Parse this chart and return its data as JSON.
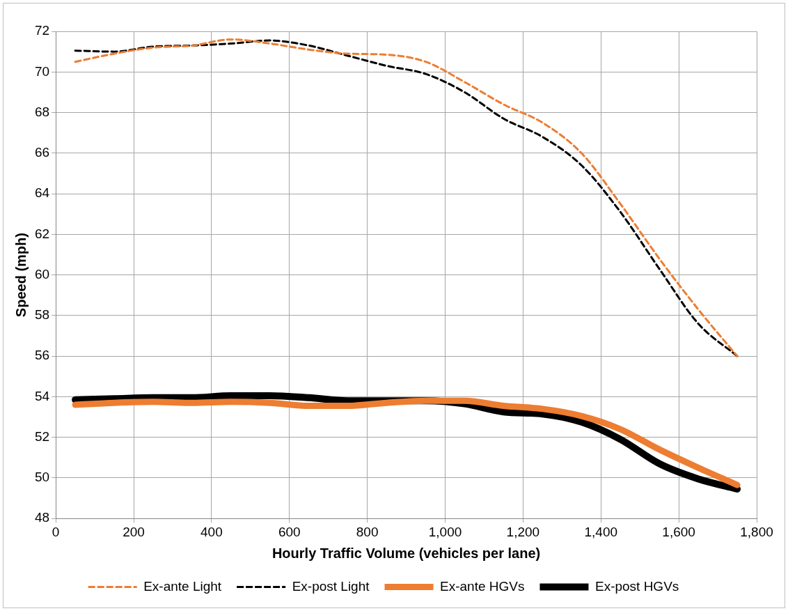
{
  "chart_data": {
    "type": "line",
    "xlabel": "Hourly Traffic Volume (vehicles per lane)",
    "ylabel": "Speed (mph)",
    "x": [
      50,
      150,
      250,
      350,
      450,
      550,
      650,
      750,
      850,
      950,
      1050,
      1150,
      1250,
      1350,
      1450,
      1550,
      1650,
      1750
    ],
    "series": [
      {
        "name": "Ex-ante Light",
        "color": "#ed7d31",
        "line_style": "dashed",
        "values": [
          70.5,
          70.9,
          71.2,
          71.3,
          71.6,
          71.4,
          71.1,
          70.9,
          70.85,
          70.5,
          69.5,
          68.4,
          67.5,
          66.0,
          63.5,
          60.8,
          58.3,
          56.0
        ]
      },
      {
        "name": "Ex-post Light",
        "color": "#000000",
        "line_style": "dashed",
        "values": [
          71.05,
          71.0,
          71.25,
          71.3,
          71.4,
          71.55,
          71.3,
          70.8,
          70.3,
          69.9,
          69.0,
          67.7,
          66.8,
          65.4,
          63.1,
          60.3,
          57.6,
          56.0
        ]
      },
      {
        "name": "Ex-ante HGVs",
        "color": "#ed7d31",
        "line_style": "solid",
        "values": [
          53.6,
          53.7,
          53.75,
          53.7,
          53.75,
          53.7,
          53.55,
          53.55,
          53.7,
          53.8,
          53.8,
          53.55,
          53.4,
          53.05,
          52.4,
          51.4,
          50.5,
          49.65
        ]
      },
      {
        "name": "Ex-post HGVs",
        "color": "#000000",
        "line_style": "solid",
        "values": [
          53.85,
          53.9,
          53.95,
          53.95,
          54.05,
          54.05,
          53.95,
          53.8,
          53.8,
          53.8,
          53.65,
          53.25,
          53.15,
          52.75,
          51.9,
          50.7,
          49.95,
          49.45
        ]
      }
    ],
    "xlim": [
      0,
      1800
    ],
    "xticks": [
      0,
      200,
      400,
      600,
      800,
      {
        "value": 1000,
        "label": "1,000"
      },
      {
        "value": 1200,
        "label": "1,200"
      },
      {
        "value": 1400,
        "label": "1,400"
      },
      {
        "value": 1600,
        "label": "1,600"
      },
      {
        "value": 1800,
        "label": "1,800"
      }
    ],
    "ylim": [
      48,
      72
    ],
    "yticks": [
      48,
      50,
      52,
      54,
      56,
      58,
      60,
      62,
      64,
      66,
      68,
      70,
      72
    ],
    "grid": true,
    "legend": "bottom",
    "marker": "none"
  }
}
